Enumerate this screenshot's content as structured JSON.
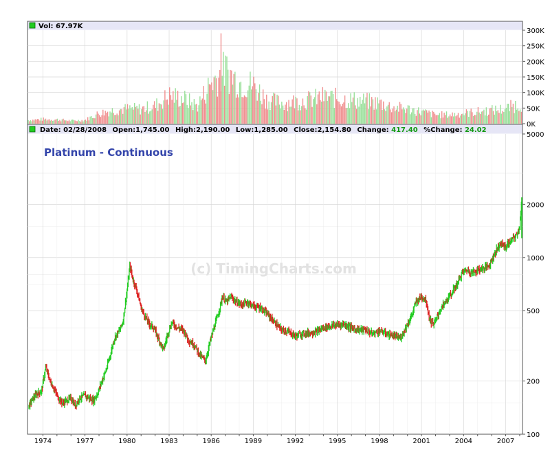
{
  "volume_panel": {
    "label": "Vol: 67.97K",
    "axis_ticks": [
      "300K",
      "250K",
      "200K",
      "150K",
      "100K",
      "50K",
      "0K"
    ]
  },
  "info_bar": {
    "date": "Date: 02/28/2008",
    "open": "Open:1,745.00",
    "high": "High:2,190.00",
    "low": "Low:1,285.00",
    "close": "Close:2,154.80",
    "change_label": "Change:",
    "change_value": "417.40",
    "pct_change_label": "%Change:",
    "pct_change_value": "24.02"
  },
  "chart_title": "Platinum - Continuous",
  "watermark": "(c) TimingCharts.com",
  "colors": {
    "up": "#22cc22",
    "down": "#dd2222",
    "title": "#3344aa",
    "panel_header": "#e6e6f6",
    "grid": "#d8d8d8"
  },
  "chart_data": [
    {
      "type": "bar",
      "title": "Vol: 67.97K",
      "ylim": [
        0,
        300000
      ],
      "yticks": [
        "300K",
        "250K",
        "200K",
        "150K",
        "100K",
        "50K",
        "0K"
      ],
      "x": [
        "1973",
        "1974",
        "1975",
        "1976",
        "1977",
        "1978",
        "1979",
        "1980",
        "1981",
        "1982",
        "1983",
        "1984",
        "1985",
        "1986",
        "1987",
        "1988",
        "1989",
        "1990",
        "1991",
        "1992",
        "1993",
        "1994",
        "1995",
        "1996",
        "1997",
        "1998",
        "1999",
        "2000",
        "2001",
        "2002",
        "2003",
        "2004",
        "2005",
        "2006",
        "2007",
        "2008"
      ],
      "values": [
        12000,
        15000,
        14000,
        10000,
        12000,
        35000,
        45000,
        50000,
        50000,
        60000,
        95000,
        85000,
        60000,
        140000,
        180000,
        140000,
        130000,
        80000,
        70000,
        75000,
        80000,
        90000,
        85000,
        80000,
        75000,
        70000,
        55000,
        50000,
        40000,
        30000,
        30000,
        35000,
        40000,
        45000,
        50000,
        67970
      ],
      "peak": {
        "x": "1986.7",
        "value": 290000
      }
    },
    {
      "type": "line",
      "title": "Platinum - Continuous",
      "scale": "log",
      "ylim": [
        100,
        5000
      ],
      "yticks": [
        "5000",
        "2000",
        "1000",
        "500",
        "200",
        "100"
      ],
      "xticks": [
        "1974",
        "1977",
        "1980",
        "1983",
        "1986",
        "1989",
        "1992",
        "1995",
        "1998",
        "2001",
        "2004",
        "2007"
      ],
      "xlim": [
        1972.9,
        2008.2
      ],
      "series": [
        {
          "x": [
            1973.0,
            1973.3,
            1973.6,
            1973.9,
            1974.2,
            1974.5,
            1974.8,
            1975.1,
            1975.4,
            1975.7,
            1976.0,
            1976.3,
            1976.6,
            1977.0,
            1977.3,
            1977.6,
            1977.9,
            1978.2,
            1978.5,
            1978.8,
            1979.1,
            1979.4,
            1979.7,
            1980.0,
            1980.2,
            1980.4,
            1980.7,
            1981.0,
            1981.3,
            1981.6,
            1981.9,
            1982.3,
            1982.6,
            1982.9,
            1983.2,
            1983.6,
            1984.0,
            1984.4,
            1984.8,
            1985.2,
            1985.6,
            1985.9,
            1986.2,
            1986.5,
            1986.8,
            1987.1,
            1987.4,
            1987.8,
            1988.2,
            1988.6,
            1989.0,
            1989.5,
            1990.0,
            1990.5,
            1991.0,
            1991.5,
            1992.0,
            1992.5,
            1993.0,
            1993.5,
            1994.0,
            1994.5,
            1995.0,
            1995.5,
            1996.0,
            1996.5,
            1997.0,
            1997.5,
            1998.0,
            1998.5,
            1999.0,
            1999.5,
            2000.0,
            2000.3,
            2000.6,
            2001.0,
            2001.3,
            2001.6,
            2001.9,
            2002.3,
            2002.7,
            2003.1,
            2003.5,
            2003.9,
            2004.2,
            2004.6,
            2005.0,
            2005.4,
            2005.8,
            2006.2,
            2006.6,
            2007.0,
            2007.4,
            2007.8,
            2008.0,
            2008.15
          ],
          "values": [
            145,
            160,
            170,
            175,
            240,
            200,
            180,
            160,
            150,
            155,
            160,
            145,
            160,
            165,
            160,
            155,
            170,
            200,
            230,
            280,
            350,
            380,
            430,
            650,
            900,
            760,
            650,
            520,
            460,
            420,
            400,
            340,
            300,
            370,
            430,
            400,
            390,
            340,
            320,
            280,
            260,
            330,
            400,
            480,
            600,
            560,
            600,
            560,
            540,
            560,
            530,
            520,
            480,
            430,
            390,
            380,
            360,
            370,
            375,
            380,
            400,
            410,
            415,
            420,
            400,
            390,
            390,
            370,
            385,
            370,
            360,
            350,
            420,
            470,
            560,
            600,
            580,
            440,
            420,
            500,
            560,
            620,
            700,
            820,
            850,
            820,
            850,
            870,
            900,
            1050,
            1200,
            1150,
            1250,
            1350,
            1500,
            2154.8
          ]
        }
      ]
    }
  ]
}
